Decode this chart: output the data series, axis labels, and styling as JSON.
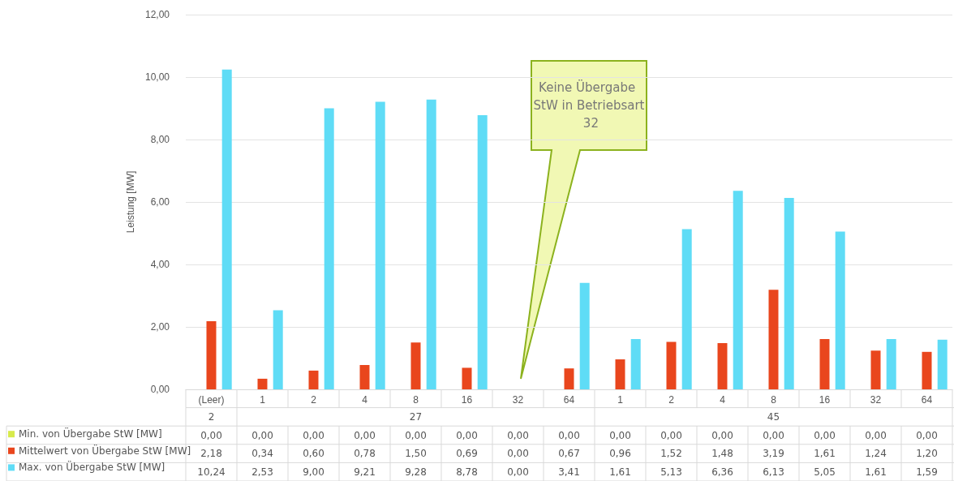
{
  "chart_data": {
    "type": "bar",
    "ylabel": "Leistung [MW]",
    "categories": [
      "(Leer)",
      "1",
      "2",
      "4",
      "8",
      "16",
      "32",
      "64",
      "1",
      "2",
      "4",
      "8",
      "16",
      "32",
      "64"
    ],
    "series": [
      {
        "name": "Min. von Übergabe StW [MW]",
        "color": "#d7ea4b",
        "values": [
          0,
          0,
          0,
          0,
          0,
          0,
          0,
          0,
          0,
          0,
          0,
          0,
          0,
          0,
          0
        ],
        "value_labels": [
          "0,00",
          "0,00",
          "0,00",
          "0,00",
          "0,00",
          "0,00",
          "0,00",
          "0,00",
          "0,00",
          "0,00",
          "0,00",
          "0,00",
          "0,00",
          "0,00",
          "0,00"
        ]
      },
      {
        "name": "Mittelwert von Übergabe StW [MW]",
        "color": "#e9461d",
        "values": [
          2.18,
          0.34,
          0.6,
          0.78,
          1.5,
          0.69,
          0,
          0.67,
          0.96,
          1.52,
          1.48,
          3.19,
          1.61,
          1.24,
          1.2
        ],
        "value_labels": [
          "2,18",
          "0,34",
          "0,60",
          "0,78",
          "1,50",
          "0,69",
          "0,00",
          "0,67",
          "0,96",
          "1,52",
          "1,48",
          "3,19",
          "1,61",
          "1,24",
          "1,20"
        ]
      },
      {
        "name": "Max. von Übergabe StW [MW]",
        "color": "#5fdcf6",
        "values": [
          10.24,
          2.53,
          9,
          9.21,
          9.28,
          8.78,
          0,
          3.41,
          1.61,
          5.13,
          6.36,
          6.13,
          5.05,
          1.61,
          1.59
        ],
        "value_labels": [
          "10,24",
          "2,53",
          "9,00",
          "9,21",
          "9,28",
          "8,78",
          "0,00",
          "3,41",
          "1,61",
          "5,13",
          "6,36",
          "6,13",
          "5,05",
          "1,61",
          "1,59"
        ]
      }
    ],
    "ylim": [
      0,
      12
    ],
    "yticks": [
      {
        "value": 0,
        "label": "0,00"
      },
      {
        "value": 2,
        "label": "2,00"
      },
      {
        "value": 4,
        "label": "4,00"
      },
      {
        "value": 6,
        "label": "6,00"
      },
      {
        "value": 8,
        "label": "8,00"
      },
      {
        "value": 10,
        "label": "10,00"
      },
      {
        "value": 12,
        "label": "12,00"
      }
    ],
    "grid": "y",
    "legend": "bottom left",
    "annotations": [
      "Keine Übergabe StW in Betriebsart 32",
      "2",
      "27",
      "45"
    ]
  }
}
